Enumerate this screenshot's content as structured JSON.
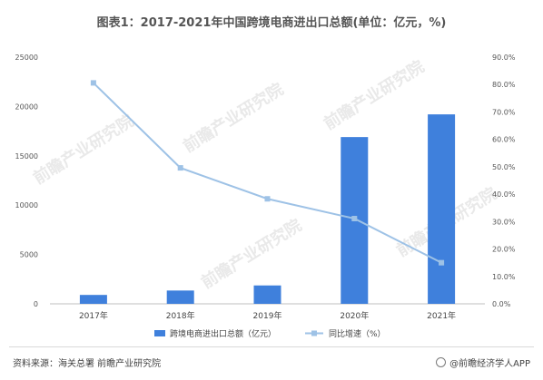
{
  "title": "图表1：2017-2021年中国跨境电商进出口总额(单位：亿元，%)",
  "chart_data": {
    "type": "bar",
    "categories": [
      "2017年",
      "2018年",
      "2019年",
      "2020年",
      "2021年"
    ],
    "series": [
      {
        "name": "跨境电商进出口总额（亿元）",
        "type": "bar",
        "axis": "left",
        "values": [
          902,
          1347,
          1862,
          16900,
          19200
        ]
      },
      {
        "name": "同比增速（%）",
        "type": "line",
        "axis": "right",
        "values": [
          80.6,
          49.6,
          38.3,
          31.1,
          15.0
        ]
      }
    ],
    "y_left": {
      "range": [
        0,
        25000
      ],
      "ticks": [
        "0",
        "5000",
        "10000",
        "15000",
        "20000",
        "25000"
      ]
    },
    "y_right": {
      "range": [
        0,
        90
      ],
      "ticks": [
        "0.0%",
        "10.0%",
        "20.0%",
        "30.0%",
        "40.0%",
        "50.0%",
        "60.0%",
        "70.0%",
        "80.0%",
        "90.0%"
      ]
    },
    "grid": false,
    "legend_position": "bottom",
    "colors": {
      "bar": "#3f80dc",
      "line": "#9ec2e6"
    }
  },
  "watermark": "前瞻产业研究院",
  "footer": {
    "source": "资料来源：海关总署 前瞻产业研究院",
    "brand": "@前瞻经济学人APP"
  }
}
